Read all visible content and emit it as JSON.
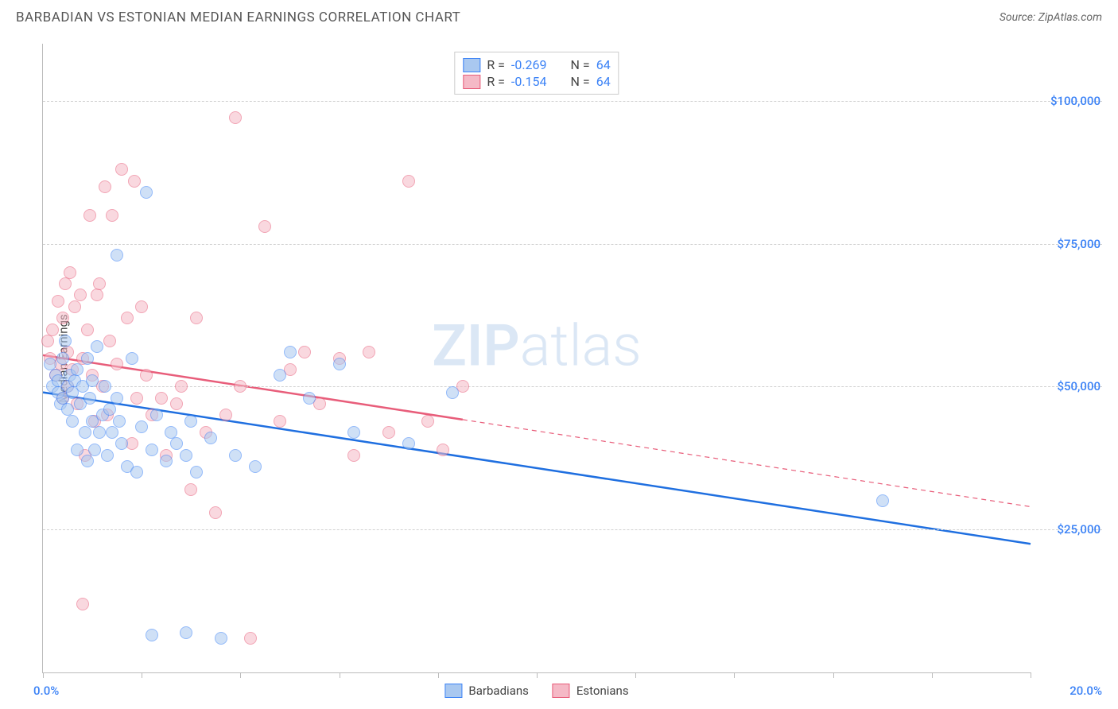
{
  "title": "BARBADIAN VS ESTONIAN MEDIAN EARNINGS CORRELATION CHART",
  "source": "Source: ZipAtlas.com",
  "watermark_a": "ZIP",
  "watermark_b": "atlas",
  "chart": {
    "type": "scatter",
    "y_axis_title": "Median Earnings",
    "xlim": [
      0,
      20
    ],
    "ylim": [
      0,
      110000
    ],
    "x_tick_step": 2.0,
    "x_label_min": "0.0%",
    "x_label_max": "20.0%",
    "y_gridlines": [
      25000,
      50000,
      75000,
      100000
    ],
    "y_tick_labels": [
      "$25,000",
      "$50,000",
      "$75,000",
      "$100,000"
    ],
    "background_color": "#ffffff",
    "grid_color": "#d0d0d0",
    "axis_color": "#bbbbbb",
    "tick_label_color": "#3b82f6",
    "point_radius": 8,
    "point_opacity": 0.55,
    "series": {
      "barbadians": {
        "label": "Barbadians",
        "fill": "#a9c8f0",
        "stroke": "#3b82f6",
        "line_color": "#1f6fe0",
        "line_width": 2.5,
        "R": "-0.269",
        "N": "64",
        "trend": {
          "x1": 0,
          "y1": 49000,
          "x2": 20,
          "y2": 22500,
          "solid_until_x": 20
        },
        "points": [
          [
            0.15,
            54000
          ],
          [
            0.2,
            50000
          ],
          [
            0.25,
            52000
          ],
          [
            0.3,
            49000
          ],
          [
            0.3,
            51000
          ],
          [
            0.35,
            47000
          ],
          [
            0.4,
            55000
          ],
          [
            0.4,
            48000
          ],
          [
            0.45,
            58000
          ],
          [
            0.5,
            50000
          ],
          [
            0.5,
            46000
          ],
          [
            0.55,
            52000
          ],
          [
            0.6,
            44000
          ],
          [
            0.6,
            49000
          ],
          [
            0.65,
            51000
          ],
          [
            0.7,
            53000
          ],
          [
            0.7,
            39000
          ],
          [
            0.75,
            47000
          ],
          [
            0.8,
            50000
          ],
          [
            0.85,
            42000
          ],
          [
            0.9,
            55000
          ],
          [
            0.9,
            37000
          ],
          [
            0.95,
            48000
          ],
          [
            1.0,
            44000
          ],
          [
            1.0,
            51000
          ],
          [
            1.05,
            39000
          ],
          [
            1.1,
            57000
          ],
          [
            1.15,
            42000
          ],
          [
            1.2,
            45000
          ],
          [
            1.25,
            50000
          ],
          [
            1.3,
            38000
          ],
          [
            1.35,
            46000
          ],
          [
            1.4,
            42000
          ],
          [
            1.5,
            73000
          ],
          [
            1.5,
            48000
          ],
          [
            1.55,
            44000
          ],
          [
            1.6,
            40000
          ],
          [
            1.7,
            36000
          ],
          [
            1.8,
            55000
          ],
          [
            1.9,
            35000
          ],
          [
            2.0,
            43000
          ],
          [
            2.1,
            84000
          ],
          [
            2.2,
            39000
          ],
          [
            2.3,
            45000
          ],
          [
            2.5,
            37000
          ],
          [
            2.6,
            42000
          ],
          [
            2.7,
            40000
          ],
          [
            2.9,
            38000
          ],
          [
            3.0,
            44000
          ],
          [
            3.1,
            35000
          ],
          [
            3.4,
            41000
          ],
          [
            3.6,
            6000
          ],
          [
            3.9,
            38000
          ],
          [
            4.3,
            36000
          ],
          [
            4.8,
            52000
          ],
          [
            5.0,
            56000
          ],
          [
            5.4,
            48000
          ],
          [
            6.0,
            54000
          ],
          [
            6.3,
            42000
          ],
          [
            7.4,
            40000
          ],
          [
            8.3,
            49000
          ],
          [
            2.2,
            6500
          ],
          [
            2.9,
            7000
          ],
          [
            17.0,
            30000
          ]
        ]
      },
      "estonians": {
        "label": "Estonians",
        "fill": "#f5b9c6",
        "stroke": "#e85d7a",
        "line_color": "#e85d7a",
        "line_width": 2.5,
        "R": "-0.154",
        "N": "64",
        "trend": {
          "x1": 0,
          "y1": 55500,
          "x2": 20,
          "y2": 29000,
          "solid_until_x": 8.5
        },
        "points": [
          [
            0.1,
            58000
          ],
          [
            0.15,
            55000
          ],
          [
            0.2,
            60000
          ],
          [
            0.25,
            52000
          ],
          [
            0.3,
            65000
          ],
          [
            0.35,
            54000
          ],
          [
            0.4,
            62000
          ],
          [
            0.4,
            48000
          ],
          [
            0.45,
            68000
          ],
          [
            0.5,
            56000
          ],
          [
            0.5,
            50000
          ],
          [
            0.55,
            70000
          ],
          [
            0.6,
            53000
          ],
          [
            0.65,
            64000
          ],
          [
            0.7,
            47000
          ],
          [
            0.75,
            66000
          ],
          [
            0.8,
            55000
          ],
          [
            0.85,
            38000
          ],
          [
            0.9,
            60000
          ],
          [
            0.95,
            80000
          ],
          [
            1.0,
            52000
          ],
          [
            1.05,
            44000
          ],
          [
            1.1,
            66000
          ],
          [
            1.15,
            68000
          ],
          [
            1.2,
            50000
          ],
          [
            1.25,
            85000
          ],
          [
            1.3,
            45000
          ],
          [
            1.35,
            58000
          ],
          [
            1.4,
            80000
          ],
          [
            1.5,
            54000
          ],
          [
            1.6,
            88000
          ],
          [
            1.7,
            62000
          ],
          [
            1.8,
            40000
          ],
          [
            1.85,
            86000
          ],
          [
            1.9,
            48000
          ],
          [
            2.0,
            64000
          ],
          [
            2.1,
            52000
          ],
          [
            2.2,
            45000
          ],
          [
            2.4,
            48000
          ],
          [
            2.5,
            38000
          ],
          [
            2.7,
            47000
          ],
          [
            2.8,
            50000
          ],
          [
            3.0,
            32000
          ],
          [
            3.1,
            62000
          ],
          [
            3.3,
            42000
          ],
          [
            3.5,
            28000
          ],
          [
            3.7,
            45000
          ],
          [
            3.9,
            97000
          ],
          [
            4.0,
            50000
          ],
          [
            4.2,
            6000
          ],
          [
            4.5,
            78000
          ],
          [
            4.8,
            44000
          ],
          [
            5.0,
            53000
          ],
          [
            5.3,
            56000
          ],
          [
            5.6,
            47000
          ],
          [
            6.0,
            55000
          ],
          [
            6.3,
            38000
          ],
          [
            6.6,
            56000
          ],
          [
            7.0,
            42000
          ],
          [
            7.4,
            86000
          ],
          [
            7.8,
            44000
          ],
          [
            8.1,
            39000
          ],
          [
            8.5,
            50000
          ],
          [
            0.8,
            12000
          ]
        ]
      }
    },
    "stats_box": {
      "rows": [
        {
          "swatch_fill": "#a9c8f0",
          "swatch_stroke": "#3b82f6",
          "prefix_r": "R = ",
          "r": "-0.269",
          "spacer": "   ",
          "prefix_n": "N = ",
          "n": "64"
        },
        {
          "swatch_fill": "#f5b9c6",
          "swatch_stroke": "#e85d7a",
          "prefix_r": "R = ",
          "r": "-0.154",
          "spacer": "   ",
          "prefix_n": "N = ",
          "n": "64"
        }
      ]
    }
  }
}
